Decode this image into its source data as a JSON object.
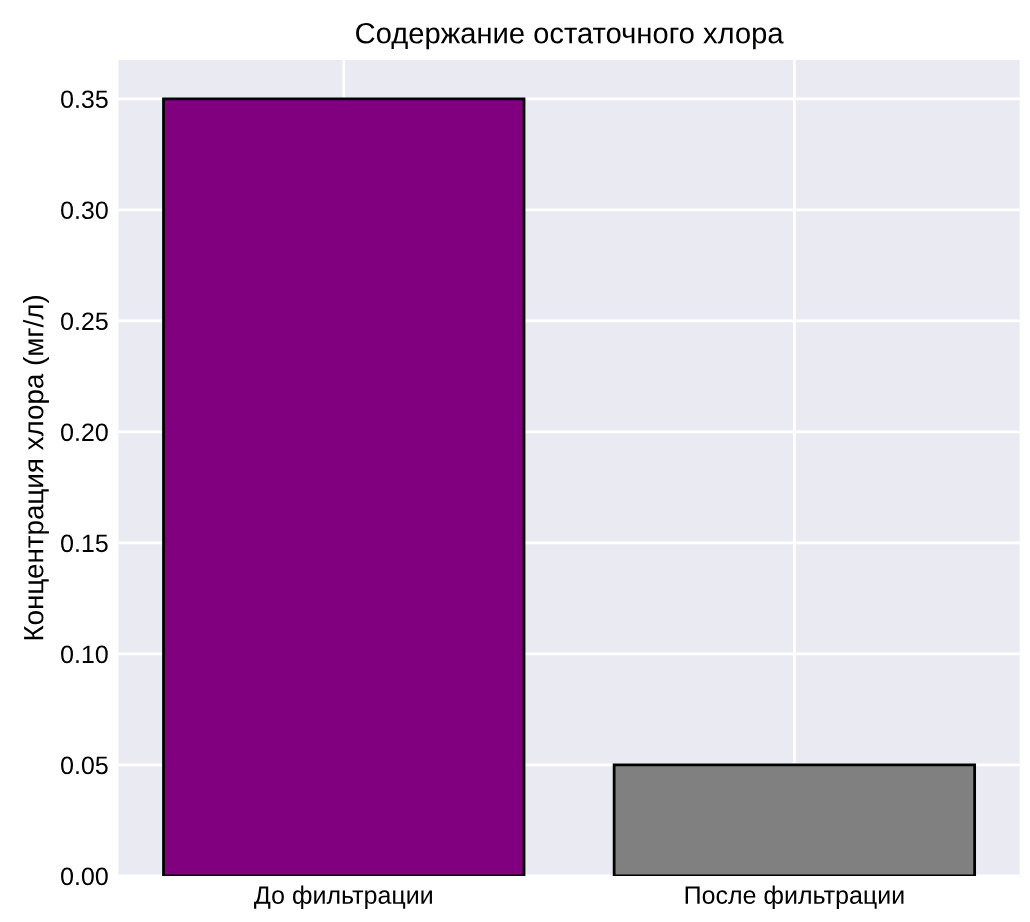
{
  "chart_data": {
    "type": "bar",
    "title": "Содержание остаточного хлора",
    "ylabel": "Концентрация хлора (мг/л)",
    "categories": [
      "До фильтрации",
      "После фильтрации"
    ],
    "values": [
      0.35,
      0.05
    ],
    "colors": [
      "#800080",
      "#808080"
    ],
    "ylim": [
      0,
      0.3675
    ],
    "yticks": [
      {
        "value": 0,
        "label": "0.00"
      },
      {
        "value": 0.05,
        "label": "0.05"
      },
      {
        "value": 0.1,
        "label": "0.10"
      },
      {
        "value": 0.15,
        "label": "0.15"
      },
      {
        "value": 0.2,
        "label": "0.20"
      },
      {
        "value": 0.25,
        "label": "0.25"
      },
      {
        "value": 0.3,
        "label": "0.30"
      },
      {
        "value": 0.35,
        "label": "0.35"
      }
    ],
    "grid": true
  }
}
